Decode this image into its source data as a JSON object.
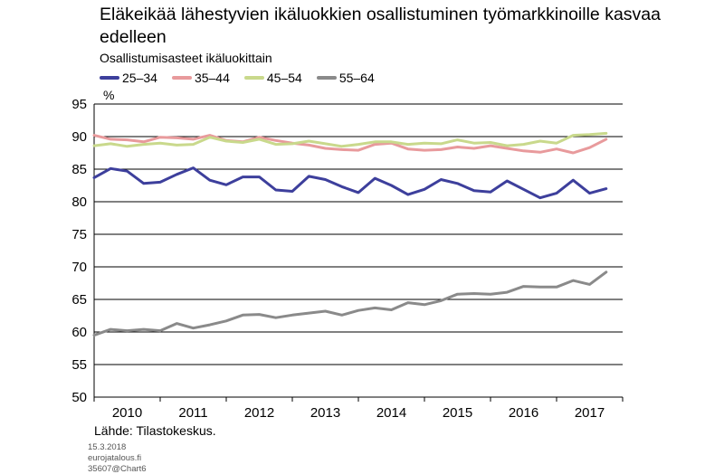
{
  "header": {
    "title": "Eläkeikää lähestyvien ikäluokkien osallistuminen työmarkkinoille kasvaa edelleen",
    "subtitle": "Osallistumisasteet  ikäluokittain"
  },
  "footer": {
    "source": "Lähde: Tilastokeskus.",
    "date": "15.3.2018",
    "site": "eurojatalous.fi",
    "code": "35607@Chart6"
  },
  "chart_data": {
    "type": "line",
    "ylabel": "%",
    "ylim": [
      50,
      95
    ],
    "yticks": [
      "95",
      "90",
      "85",
      "80",
      "75",
      "70",
      "65",
      "60",
      "55",
      "50"
    ],
    "xlim": [
      2010,
      2018
    ],
    "xticks": [
      "2010",
      "2011",
      "2012",
      "2013",
      "2014",
      "2015",
      "2016",
      "2017"
    ],
    "grid": "horizontal",
    "legend_position": "top",
    "x": [
      2010.0,
      2010.25,
      2010.5,
      2010.75,
      2011.0,
      2011.25,
      2011.5,
      2011.75,
      2012.0,
      2012.25,
      2012.5,
      2012.75,
      2013.0,
      2013.25,
      2013.5,
      2013.75,
      2014.0,
      2014.25,
      2014.5,
      2014.75,
      2015.0,
      2015.25,
      2015.5,
      2015.75,
      2016.0,
      2016.25,
      2016.5,
      2016.75,
      2017.0,
      2017.25,
      2017.5,
      2017.75
    ],
    "series": [
      {
        "name": "25–34",
        "color": "#3d3f9c",
        "values": [
          83.7,
          85.1,
          84.7,
          82.8,
          83.0,
          84.2,
          85.2,
          83.3,
          82.6,
          83.8,
          83.8,
          81.8,
          81.6,
          83.9,
          83.4,
          82.3,
          81.4,
          83.6,
          82.5,
          81.1,
          81.9,
          83.4,
          82.8,
          81.7,
          81.5,
          83.2,
          81.9,
          80.6,
          81.3,
          83.3,
          81.3,
          82.0
        ]
      },
      {
        "name": "35–44",
        "color": "#e89a9c",
        "values": [
          90.2,
          89.6,
          89.5,
          89.2,
          89.9,
          89.8,
          89.6,
          90.2,
          89.4,
          89.2,
          89.9,
          89.4,
          89.0,
          88.7,
          88.2,
          88.0,
          87.9,
          88.8,
          89.0,
          88.1,
          87.9,
          88.0,
          88.4,
          88.2,
          88.6,
          88.2,
          87.8,
          87.6,
          88.1,
          87.5,
          88.3,
          89.6
        ]
      },
      {
        "name": "45–54",
        "color": "#c9d98c",
        "values": [
          88.6,
          88.9,
          88.5,
          88.8,
          89.0,
          88.7,
          88.8,
          89.9,
          89.3,
          89.1,
          89.6,
          88.8,
          88.9,
          89.3,
          88.9,
          88.5,
          88.8,
          89.2,
          89.2,
          88.8,
          89.0,
          88.9,
          89.5,
          89.0,
          89.1,
          88.6,
          88.8,
          89.3,
          89.0,
          90.2,
          90.3,
          90.5
        ]
      },
      {
        "name": "55–64",
        "color": "#8a8a8a",
        "values": [
          59.5,
          60.4,
          60.2,
          60.4,
          60.2,
          61.3,
          60.6,
          61.1,
          61.7,
          62.6,
          62.7,
          62.2,
          62.6,
          62.9,
          63.2,
          62.6,
          63.3,
          63.7,
          63.4,
          64.5,
          64.2,
          64.8,
          65.8,
          65.9,
          65.8,
          66.1,
          67.0,
          66.9,
          66.9,
          67.9,
          67.3,
          69.2
        ]
      }
    ]
  }
}
